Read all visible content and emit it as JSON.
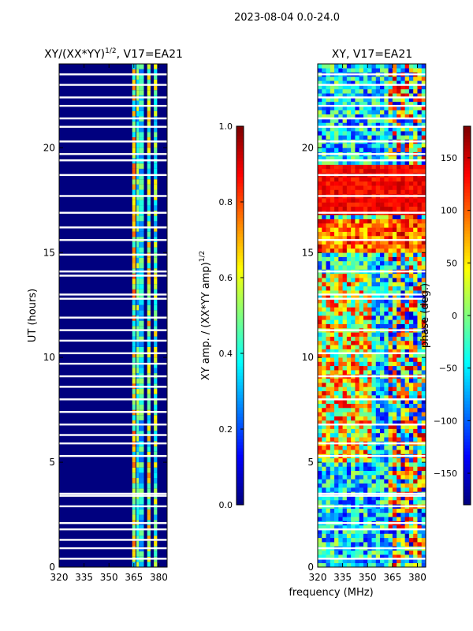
{
  "suptitle": "2023-08-04 0.0-24.0",
  "shared": {
    "xlabel": "frequency (MHz)",
    "ylabel": "UT (hours)",
    "xlim": [
      320,
      385
    ],
    "xticks": [
      320,
      335,
      350,
      365,
      380
    ],
    "ylim": [
      0,
      24
    ],
    "yticks": [
      0,
      5,
      10,
      15,
      20
    ]
  },
  "colors": {
    "background": "#00007f",
    "gap": "#ffffff",
    "jet": [
      "#00007f",
      "#0000ff",
      "#007fff",
      "#00ffff",
      "#7fff7f",
      "#ffff00",
      "#ff7f00",
      "#ff0000",
      "#7f0000"
    ]
  },
  "chart_data": [
    {
      "type": "heatmap",
      "title_main": "XY/(XX*YY)",
      "title_exp": "1/2",
      "title_suffix": ", V17=EA21",
      "xlabel": "frequency (MHz)",
      "ylabel": "UT (hours)",
      "xlim": [
        320,
        385
      ],
      "ylim": [
        0,
        24
      ],
      "colorbar": {
        "label_main": "XY amp. / (XX*YY amp)",
        "label_exp": "1/2",
        "range": [
          0.0,
          1.0
        ],
        "ticks": [
          0.0,
          0.2,
          0.4,
          0.6,
          0.8,
          1.0
        ],
        "tick_labels": [
          "0.0",
          "0.2",
          "0.4",
          "0.6",
          "0.8",
          "1.0"
        ]
      },
      "description_channels": [
        {
          "freq_start": 364,
          "freq_end": 366,
          "value": 0.6
        },
        {
          "freq_start": 366.5,
          "freq_end": 368,
          "value": 0.45
        },
        {
          "freq_start": 368,
          "freq_end": 371,
          "value": 0.4
        },
        {
          "freq_start": 373,
          "freq_end": 375,
          "value": 0.55
        },
        {
          "freq_start": 377,
          "freq_end": 379,
          "value": 0.5
        }
      ],
      "gaps_ut": [
        0.4,
        0.9,
        1.3,
        1.8,
        2.1,
        2.9,
        3.4,
        3.5,
        5.3,
        5.9,
        6.3,
        6.8,
        7.4,
        8.0,
        8.6,
        9.1,
        9.7,
        10.2,
        10.8,
        11.3,
        11.9,
        12.8,
        13.0,
        13.9,
        14.1,
        14.9,
        15.6,
        16.2,
        16.9,
        17.7,
        18.7,
        19.4,
        19.7,
        20.3,
        21.0,
        21.4,
        22.0,
        22.4,
        23.0,
        23.5
      ]
    },
    {
      "type": "heatmap",
      "title_main": "XY, V17=EA21",
      "xlabel": "frequency (MHz)",
      "ylabel": "UT (hours)",
      "xlim": [
        320,
        385
      ],
      "ylim": [
        0,
        24
      ],
      "colorbar": {
        "label": "phase (deg.)",
        "range": [
          -180,
          180
        ],
        "ticks": [
          -150,
          -100,
          -50,
          0,
          50,
          100,
          150
        ],
        "tick_labels": [
          "−150",
          "−100",
          "−50",
          "0",
          "50",
          "100",
          "150"
        ]
      },
      "gaps_ut": [
        0.4,
        0.9,
        1.8,
        2.1,
        2.9,
        3.4,
        3.5,
        5.3,
        5.9,
        6.8,
        8.0,
        9.1,
        10.2,
        11.3,
        12.8,
        13.0,
        14.1,
        15.6,
        16.9,
        17.7,
        18.7,
        19.4,
        19.7,
        20.3,
        21.0,
        21.4,
        22.0,
        22.4,
        23.0,
        23.5
      ]
    }
  ]
}
